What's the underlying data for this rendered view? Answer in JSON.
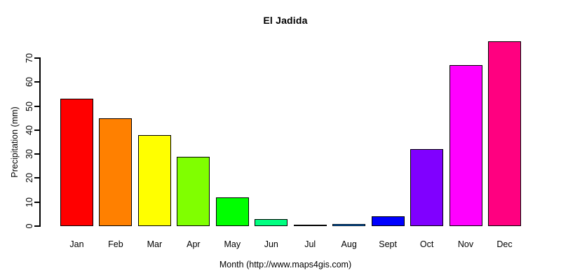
{
  "figure": {
    "background": "#ffffff",
    "text_color": "#000000",
    "axis_color": "#000000"
  },
  "chart_data": {
    "type": "bar",
    "title": "El Jadida",
    "xlabel": "Month (http://www.maps4gis.com)",
    "ylabel": "Precipitation (mm)",
    "categories": [
      "Jan",
      "Feb",
      "Mar",
      "Apr",
      "May",
      "Jun",
      "Jul",
      "Aug",
      "Sept",
      "Oct",
      "Nov",
      "Dec"
    ],
    "values": [
      53,
      45,
      38,
      29,
      12,
      3,
      0.2,
      1,
      4,
      32,
      67,
      77
    ],
    "bar_colors": [
      "#FF0000",
      "#FF8000",
      "#FFFF00",
      "#80FF00",
      "#00FF00",
      "#00FF80",
      "#00FFFF",
      "#0080FF",
      "#0000FF",
      "#8000FF",
      "#FF00FF",
      "#FF0080"
    ],
    "bar_border_color": "#000000",
    "yticks": [
      0,
      10,
      20,
      30,
      40,
      50,
      60,
      70
    ],
    "ylim": [
      0,
      78
    ],
    "grid": false,
    "legend_position": "none"
  }
}
